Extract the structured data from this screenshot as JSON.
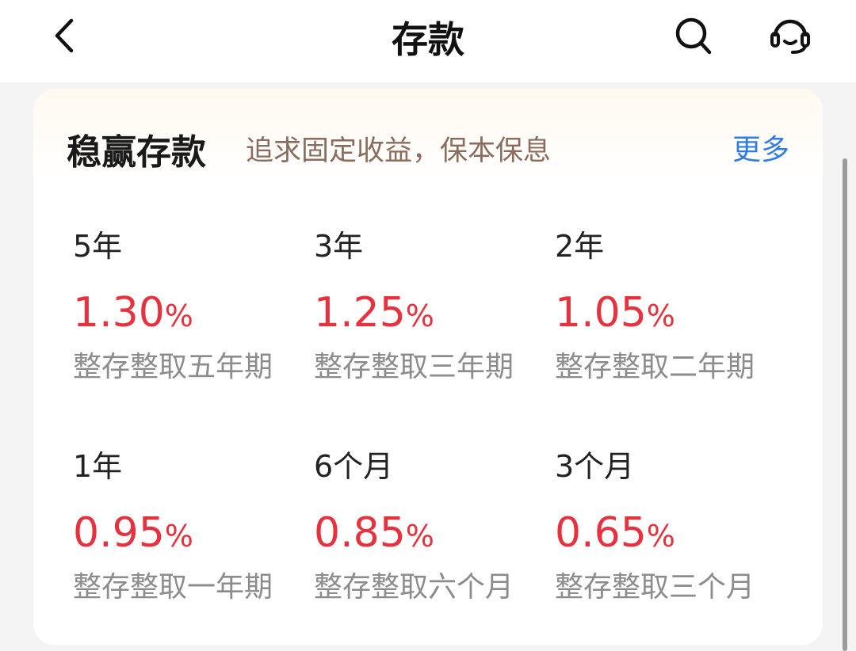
{
  "header": {
    "title": "存款",
    "icons": [
      "back-icon",
      "search-icon",
      "customer-service-icon"
    ]
  },
  "card": {
    "title": "稳赢存款",
    "subtitle": "追求固定收益，保本保息",
    "more": "更多",
    "items": [
      {
        "term": "5年",
        "rate": "1.30",
        "unit": "%",
        "desc": "整存整取五年期"
      },
      {
        "term": "3年",
        "rate": "1.25",
        "unit": "%",
        "desc": "整存整取三年期"
      },
      {
        "term": "2年",
        "rate": "1.05",
        "unit": "%",
        "desc": "整存整取二年期"
      },
      {
        "term": "1年",
        "rate": "0.95",
        "unit": "%",
        "desc": "整存整取一年期"
      },
      {
        "term": "6个月",
        "rate": "0.85",
        "unit": "%",
        "desc": "整存整取六个月"
      },
      {
        "term": "3个月",
        "rate": "0.65",
        "unit": "%",
        "desc": "整存整取三个月"
      }
    ]
  },
  "colors": {
    "rate": "#e5323e",
    "more": "#2f7de1",
    "subtitle": "#8b6b5e"
  }
}
